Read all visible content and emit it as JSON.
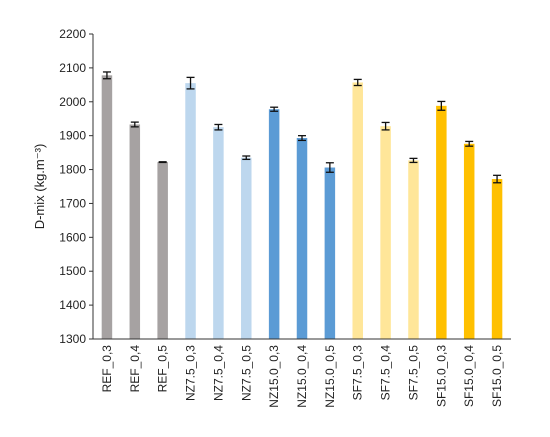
{
  "chart_data": {
    "type": "bar",
    "title": "",
    "xlabel": "",
    "ylabel": "D-mix  (kg.m⁻³)",
    "ylim": [
      1300,
      2200
    ],
    "yticks": [
      1300,
      1400,
      1500,
      1600,
      1700,
      1800,
      1900,
      2000,
      2100,
      2200
    ],
    "grid": false,
    "legend": "none",
    "categories": [
      "REF_0,3",
      "REF_0,4",
      "REF_0,5",
      "NZ7.5_0,3",
      "NZ7.5_0,4",
      "NZ7.5_0,5",
      "NZ15.0_0,3",
      "NZ15.0_0,4",
      "NZ15.0_0,5",
      "SF7.5_0,3",
      "SF7.5_0,4",
      "SF7.5_0,5",
      "SF15.0_0,3",
      "SF15.0_0,4",
      "SF15.0_0,5"
    ],
    "values": [
      2078,
      1933,
      1822,
      2055,
      1925,
      1835,
      1978,
      1893,
      1806,
      2057,
      1928,
      1827,
      1988,
      1876,
      1772
    ],
    "errors": [
      10,
      7,
      1,
      17,
      8,
      5,
      6,
      7,
      14,
      9,
      11,
      6,
      13,
      7,
      11
    ],
    "colors": [
      "#a6a2a2",
      "#a6a2a2",
      "#a6a2a2",
      "#bdd7ee",
      "#bdd7ee",
      "#bdd7ee",
      "#5b9bd5",
      "#5b9bd5",
      "#5b9bd5",
      "#ffe699",
      "#ffe699",
      "#ffe699",
      "#ffc000",
      "#ffc000",
      "#ffc000"
    ]
  }
}
